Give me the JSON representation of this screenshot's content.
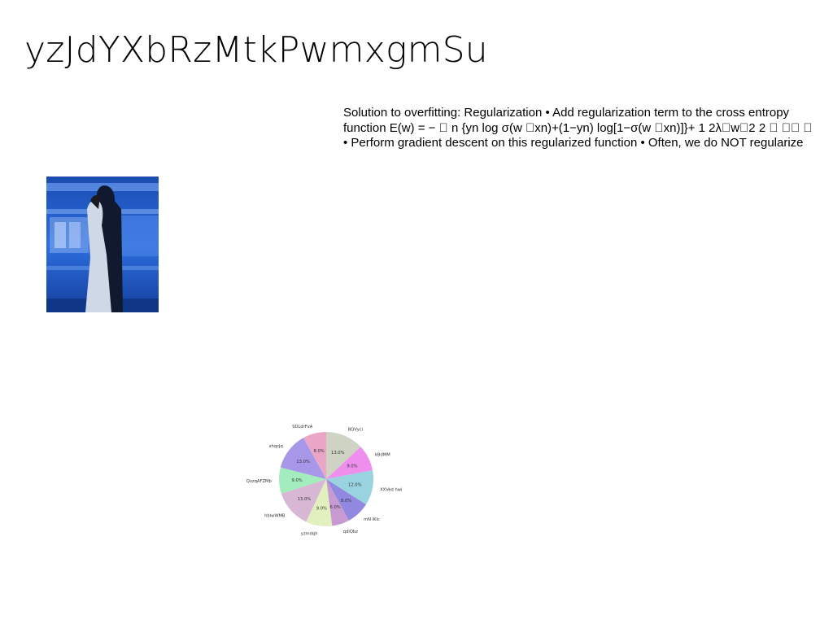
{
  "slide": {
    "title": "yzJdYXbRzMtkPwmxgmSu",
    "body_lines": [
      "Solution to overfitting: Regularization • Add regularization term to the cross entropy",
      "function E(w) = − \u0000 n {yn log σ(w \u0000xn)+(1−yn) log[1−σ(w \u0000xn)]}+ 1 2λ\u0000w\u00002 2 \u0000 \u0000\u0000 \u0000",
      "• Perform gradient descent on this regularized function • Often, we do NOT regularize"
    ]
  },
  "photo": {
    "icon": "photo-couple-train-platform",
    "accent": "#1f56c9"
  },
  "chart_data": {
    "type": "pie",
    "title": "",
    "start_angle_deg": 90,
    "direction": "clockwise",
    "slices": [
      {
        "label": "BQVyci",
        "value": 13.0,
        "pct_label": "13.0%",
        "color": "#cfd3c4"
      },
      {
        "label": "kBdMM",
        "value": 9.0,
        "pct_label": "9.0%",
        "color": "#ee8fee"
      },
      {
        "label": "XXVed hwi",
        "value": 12.0,
        "pct_label": "12.0%",
        "color": "#9ad3e0"
      },
      {
        "label": "mN iKlc",
        "value": 8.0,
        "pct_label": "8.0%",
        "color": "#9189e0"
      },
      {
        "label": "qdlQbz",
        "value": 6.0,
        "pct_label": "6.0%",
        "color": "#c79bd1"
      },
      {
        "label": "yzmdqh",
        "value": 9.0,
        "pct_label": "9.0%",
        "color": "#e2f0c0"
      },
      {
        "label": "hblwWMB",
        "value": 13.0,
        "pct_label": "13.0%",
        "color": "#d7b7d3"
      },
      {
        "label": "QvzqAFZMb",
        "value": 9.0,
        "pct_label": "9.0%",
        "color": "#a3ecbd"
      },
      {
        "label": "xhqcJq",
        "value": 13.0,
        "pct_label": "13.0%",
        "color": "#a697e8"
      },
      {
        "label": "SDLdrFvA",
        "value": 8.0,
        "pct_label": "8.0%",
        "color": "#eaa6c7"
      }
    ]
  }
}
